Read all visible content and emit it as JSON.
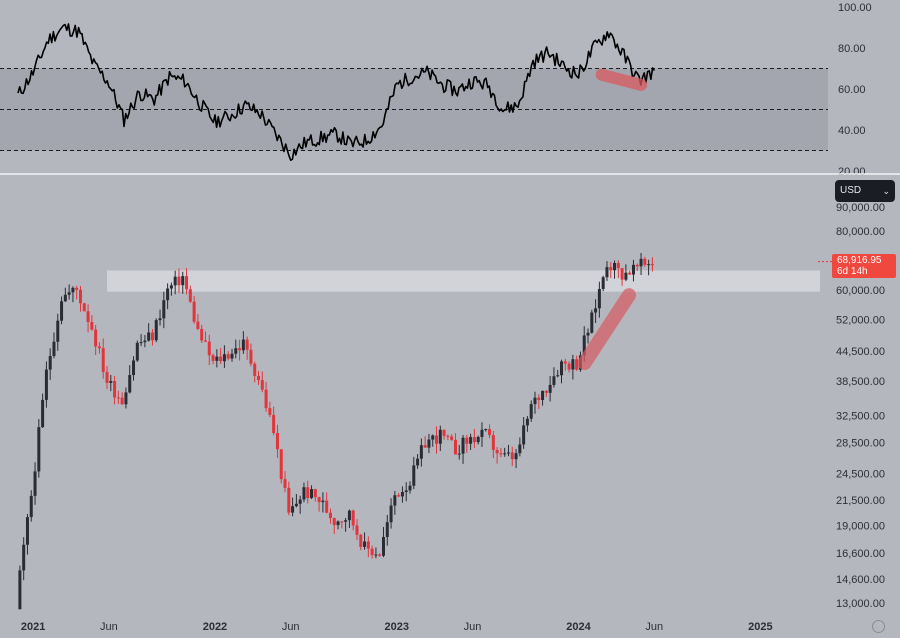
{
  "currency_select": {
    "label": "USD",
    "chevron_icon": "chevron-down-icon"
  },
  "last_price": {
    "value": "68,916.95",
    "countdown": "6d 14h"
  },
  "colors": {
    "background": "#b5b7bf",
    "band": "#a4a6af",
    "line": "#000000",
    "up_candle": "#2a2c34",
    "down_candle": "#e2353b",
    "highlight": "#d9dade",
    "annotation": "#d85a60"
  },
  "x_axis": {
    "tick_labels": [
      "2021",
      "Jun",
      "2022",
      "Jun",
      "2023",
      "Jun",
      "2024",
      "Jun",
      "2025"
    ]
  },
  "chart_data": [
    {
      "type": "line",
      "panel": "oscillator",
      "ylim": [
        20,
        100
      ],
      "y_ticks": [
        "100.00",
        "80.00",
        "60.00",
        "40.00",
        "20.00"
      ],
      "reference_lines": [
        70,
        50,
        30
      ],
      "band": [
        30,
        70
      ],
      "x": [
        "2020-12",
        "2021-01",
        "2021-02",
        "2021-03",
        "2021-04",
        "2021-05",
        "2021-06",
        "2021-07",
        "2021-08",
        "2021-09",
        "2021-10",
        "2021-11",
        "2021-12",
        "2022-01",
        "2022-02",
        "2022-03",
        "2022-04",
        "2022-05",
        "2022-06",
        "2022-07",
        "2022-08",
        "2022-09",
        "2022-10",
        "2022-11",
        "2022-12",
        "2023-01",
        "2023-02",
        "2023-03",
        "2023-04",
        "2023-05",
        "2023-06",
        "2023-07",
        "2023-08",
        "2023-09",
        "2023-10",
        "2023-11",
        "2023-12",
        "2024-01",
        "2024-02",
        "2024-03",
        "2024-04",
        "2024-05",
        "2024-06"
      ],
      "values": [
        57,
        68,
        84,
        90,
        88,
        72,
        63,
        45,
        58,
        55,
        66,
        64,
        53,
        44,
        47,
        52,
        48,
        38,
        28,
        34,
        36,
        38,
        33,
        35,
        42,
        62,
        66,
        68,
        62,
        59,
        64,
        62,
        50,
        52,
        73,
        78,
        71,
        67,
        80,
        88,
        76,
        64,
        69
      ],
      "annotation": {
        "type": "highlight",
        "x": [
          "2024-02",
          "2024-05"
        ],
        "y": [
          67,
          62
        ]
      }
    },
    {
      "type": "candlestick",
      "panel": "price",
      "scale": "log",
      "y_ticks": [
        "90,000.00",
        "80,000.00",
        "60,000.00",
        "52,000.00",
        "44,500.00",
        "38,500.00",
        "32,500.00",
        "28,500.00",
        "24,500.00",
        "21,500.00",
        "19,000.00",
        "16,600.00",
        "14,600.00",
        "13,000.00"
      ],
      "x": [
        "2020-12",
        "2021-01",
        "2021-02",
        "2021-03",
        "2021-04",
        "2021-05",
        "2021-06",
        "2021-07",
        "2021-08",
        "2021-09",
        "2021-10",
        "2021-11",
        "2021-12",
        "2022-01",
        "2022-02",
        "2022-03",
        "2022-04",
        "2022-05",
        "2022-06",
        "2022-07",
        "2022-08",
        "2022-09",
        "2022-10",
        "2022-11",
        "2022-12",
        "2023-01",
        "2023-02",
        "2023-03",
        "2023-04",
        "2023-05",
        "2023-06",
        "2023-07",
        "2023-08",
        "2023-09",
        "2023-10",
        "2023-11",
        "2023-12",
        "2024-01",
        "2024-02",
        "2024-03",
        "2024-04",
        "2024-05",
        "2024-06"
      ],
      "close": [
        13000,
        22000,
        40000,
        58000,
        60000,
        50000,
        38500,
        35000,
        46000,
        48000,
        60000,
        64000,
        49000,
        42000,
        44000,
        46000,
        39000,
        30000,
        20000,
        22500,
        21500,
        19500,
        20000,
        17000,
        16600,
        22000,
        23500,
        28500,
        29500,
        27500,
        29000,
        29500,
        26500,
        26500,
        34000,
        37500,
        42000,
        42000,
        52000,
        69000,
        65000,
        67000,
        68916.95
      ],
      "resistance_zone": [
        59500,
        66000
      ],
      "last_price": 68916.95,
      "annotation": {
        "type": "highlight",
        "x": [
          "2024-01",
          "2024-04"
        ],
        "y": [
          42000,
          58500
        ]
      }
    }
  ]
}
